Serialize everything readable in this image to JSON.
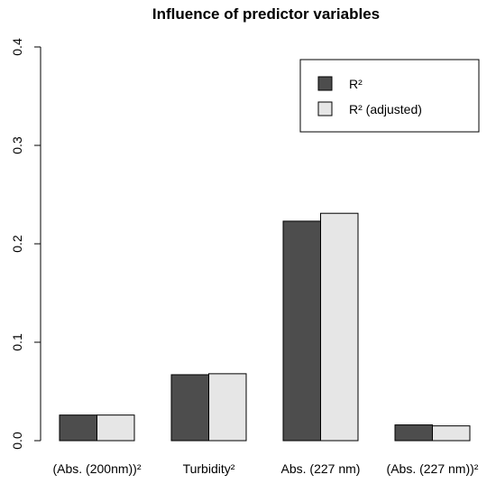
{
  "chart_data": {
    "type": "bar",
    "title": "Influence of predictor variables",
    "xlabel": "",
    "ylabel": "",
    "categories": [
      "(Abs. (200nm))²",
      "Turbidity²",
      "Abs. (227 nm)",
      "(Abs. (227 nm))²"
    ],
    "series": [
      {
        "name": "R²",
        "values": [
          0.026,
          0.067,
          0.223,
          0.016
        ],
        "color": "#4d4d4d"
      },
      {
        "name": "R² (adjusted)",
        "values": [
          0.026,
          0.068,
          0.231,
          0.015
        ],
        "color": "#e6e6e6"
      }
    ],
    "ylim": [
      0,
      0.4
    ],
    "yticks": [
      "0.0",
      "0.1",
      "0.2",
      "0.3",
      "0.4"
    ],
    "ytick_values": [
      0,
      0.1,
      0.2,
      0.3,
      0.4
    ],
    "grid": false,
    "legend_position": "top-right"
  }
}
